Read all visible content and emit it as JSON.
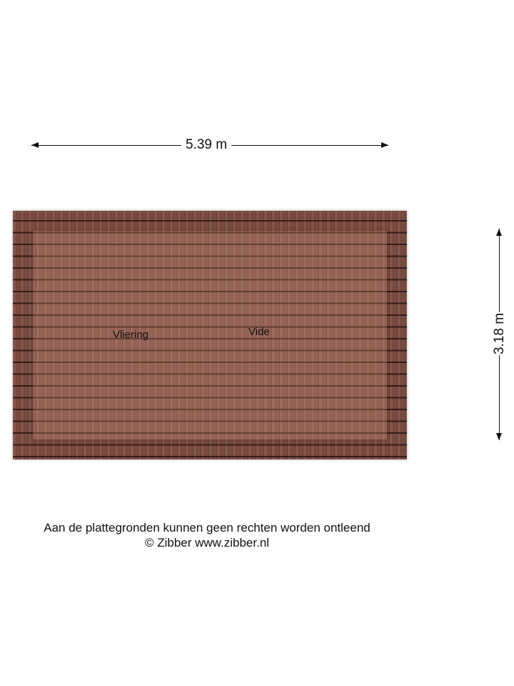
{
  "dimensions": {
    "width": "5.39 m",
    "height": "3.18 m"
  },
  "rooms": [
    {
      "label": "Vliering"
    },
    {
      "label": "Vide"
    }
  ],
  "footer": {
    "disclaimer": "Aan de plattegronden kunnen geen rechten worden ontleend",
    "copyright": "© Zibber www.zibber.nl"
  },
  "colors": {
    "roof": "#7a4a3e",
    "line": "#111111"
  }
}
